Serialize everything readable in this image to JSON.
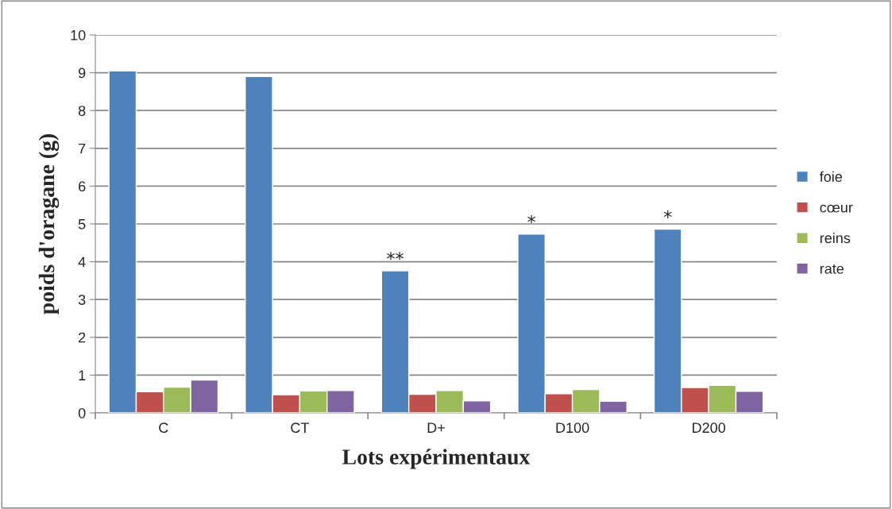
{
  "chart_data": {
    "type": "bar",
    "xlabel": "Lots expérimentaux",
    "ylabel": "poids d'oragane (g)",
    "categories": [
      "C",
      "CT",
      "D+",
      "D100",
      "D200"
    ],
    "series": [
      {
        "name": "foie",
        "color": "#4f81bd",
        "values": [
          9.05,
          8.9,
          3.76,
          4.73,
          4.86
        ],
        "value_labels": [
          null,
          null,
          "**",
          "*",
          "*"
        ]
      },
      {
        "name": "cœur",
        "color": "#c0504d",
        "values": [
          0.56,
          0.48,
          0.49,
          0.51,
          0.67
        ]
      },
      {
        "name": "reins",
        "color": "#9bbb59",
        "values": [
          0.68,
          0.58,
          0.59,
          0.62,
          0.73
        ]
      },
      {
        "name": "rate",
        "color": "#8064a2",
        "values": [
          0.87,
          0.59,
          0.32,
          0.31,
          0.57
        ]
      }
    ],
    "ylim": [
      0,
      10
    ],
    "yticks": [
      0,
      1,
      2,
      3,
      4,
      5,
      6,
      7,
      8,
      9,
      10
    ],
    "grid": "y",
    "legend": "right"
  }
}
